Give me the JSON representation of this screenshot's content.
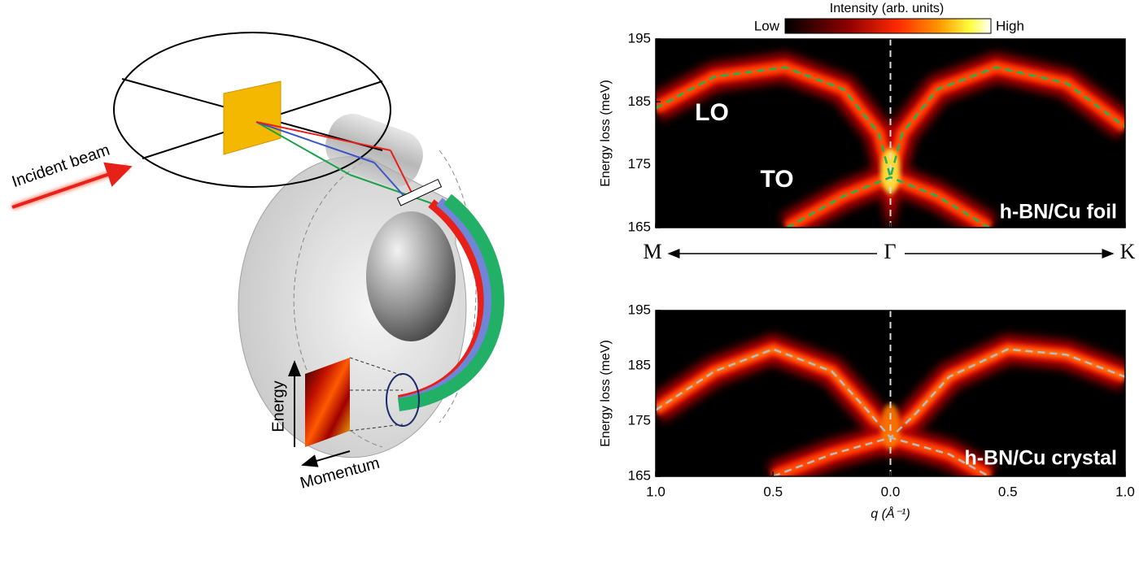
{
  "diagram": {
    "incident": "Incident beam",
    "energy": "Energy",
    "momentum": "Momentum"
  },
  "colorbar": {
    "title": "Intensity (arb. units)",
    "low": "Low",
    "high": "High"
  },
  "direction": {
    "left": "M",
    "center": "Γ",
    "right": "K"
  },
  "chart_data": [
    {
      "type": "heatmap",
      "ylabel": "Energy loss (meV)",
      "ylim": [
        165,
        195
      ],
      "yticks": [
        165,
        175,
        185,
        195
      ],
      "xlim": [
        -1,
        1
      ],
      "xticks": [
        -1,
        -0.5,
        0,
        0.5,
        1
      ],
      "annotations": [
        "h-BN/Cu foil"
      ],
      "series": [
        {
          "name": "LO",
          "color": "#22b254",
          "x": [
            -1,
            -0.75,
            -0.45,
            -0.2,
            -0.05,
            0,
            0.05,
            0.2,
            0.45,
            0.75,
            1
          ],
          "values": [
            184,
            189,
            190.5,
            187,
            180,
            173,
            180,
            187,
            190.5,
            188,
            181
          ]
        },
        {
          "name": "TO",
          "color": "#22b254",
          "x": [
            -0.44,
            -0.2,
            0,
            0.2,
            0.42
          ],
          "values": [
            165,
            170,
            173,
            170,
            165
          ]
        }
      ]
    },
    {
      "type": "heatmap",
      "ylabel": "Energy loss (meV)",
      "xlabel": "q (Å⁻¹)",
      "ylim": [
        165,
        195
      ],
      "yticks": [
        165,
        175,
        185,
        195
      ],
      "xlim": [
        -1,
        1
      ],
      "xticks": [
        {
          "value": -1,
          "label": "1.0"
        },
        {
          "value": -0.5,
          "label": "0.5"
        },
        {
          "value": 0,
          "label": "0.0"
        },
        {
          "value": 0.5,
          "label": "0.5"
        },
        {
          "value": 1,
          "label": "1.0"
        }
      ],
      "annotations": [
        "h-BN/Cu crystal"
      ],
      "series": [
        {
          "color": "#bbbbbb",
          "x": [
            -1,
            -0.75,
            -0.5,
            -0.25,
            -0.1,
            0,
            0.1,
            0.25,
            0.5,
            0.75,
            1
          ],
          "values": [
            177,
            184,
            188,
            184,
            177,
            172,
            176,
            183,
            188,
            187,
            183
          ]
        },
        {
          "color": "#bbbbbb",
          "x": [
            -0.5,
            -0.25,
            0,
            0.25,
            0.42
          ],
          "values": [
            165,
            169,
            172,
            169,
            165
          ]
        }
      ]
    }
  ]
}
